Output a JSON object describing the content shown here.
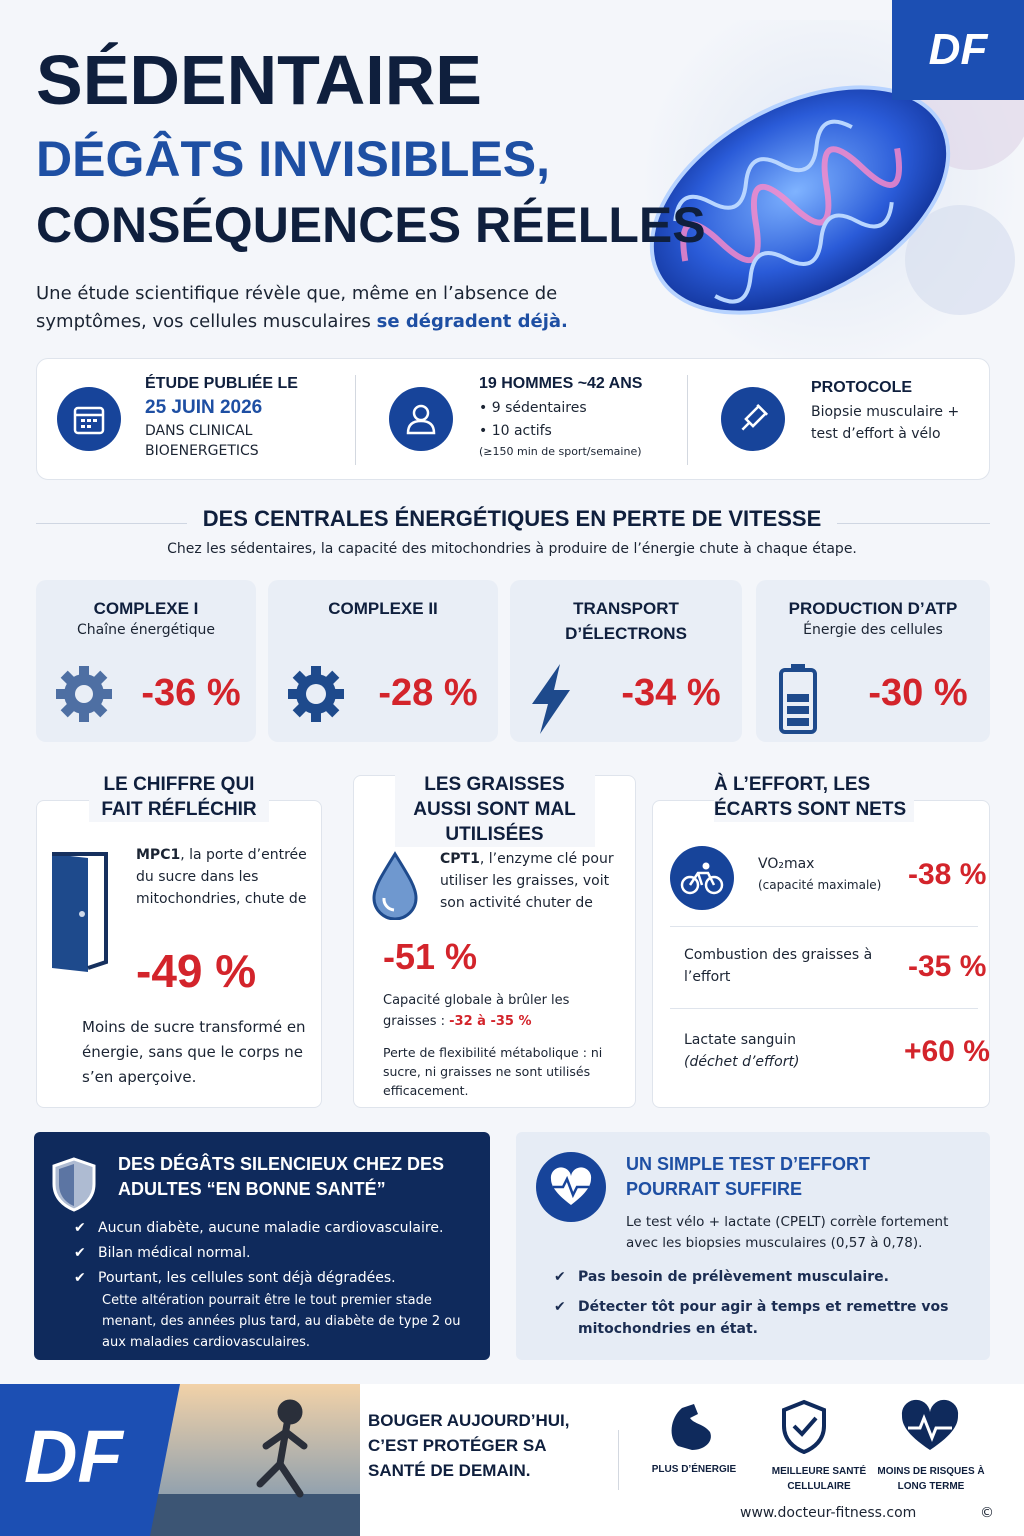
{
  "header": {
    "brand": "DF",
    "title": "SÉDENTAIRE",
    "subtitle_1": "DÉGÂTS INVISIBLES,",
    "subtitle_2": "CONSÉQUENCES RÉELLES",
    "intro": "Une étude scientifique révèle que, même en l’absence de symptômes, vos cellules musculaires ",
    "intro_emphasis": "se dégradent déjà."
  },
  "study_facts": {
    "publication": {
      "title": "ÉTUDE PUBLIÉE LE",
      "date": "25 JUIN 2026",
      "journal": "DANS CLINICAL BIOENERGETICS"
    },
    "participants": {
      "title": "19 HOMMES ~42 ANS",
      "lines": [
        "• 9 sédentaires",
        "• 10 actifs",
        "(≥150 min de sport/semaine)"
      ]
    },
    "protocol": {
      "title": "PROTOCOLE",
      "text": "Biopsie musculaire + test d’effort à vélo"
    }
  },
  "energy_section": {
    "title": "DES CENTRALES ÉNERGÉTIQUES EN PERTE DE VITESSE",
    "subtitle": "Chez les sédentaires, la capacité des mitochondries à produire de l’énergie chute à chaque étape.",
    "items": [
      {
        "title": "COMPLEXE I",
        "caption": "Chaîne énergétique",
        "value": "-36 %"
      },
      {
        "title": "COMPLEXE II",
        "value": "-28 %"
      },
      {
        "title": "TRANSPORT D’ÉLECTRONS",
        "value": "-34 %"
      },
      {
        "title": "PRODUCTION D’ATP",
        "caption": "Énergie des cellules",
        "value": "-30 %"
      }
    ]
  },
  "key_figure": {
    "title": "LE CHIFFRE QUI FAIT RÉFLÉCHIR",
    "term": "MPC1",
    "text": ", la porte d’entrée du sucre dans les mitochondries, chute de",
    "value": "-49 %",
    "conclusion": "Moins de sucre transformé en énergie, sans que le corps ne s’en aperçoive."
  },
  "fats": {
    "title": "LES GRAISSES AUSSI SONT MAL UTILISÉES",
    "term": "CPT1",
    "text": ", l’enzyme clé pour utiliser les graisses, voit son activité chuter de",
    "value": "-51 %",
    "capacity_text": "Capacité globale à brûler les graisses : ",
    "capacity_value": "-32 à -35 %",
    "flexibility": "Perte de flexibilité métabolique : ni sucre, ni graisses ne sont utilisés efficacement."
  },
  "effort": {
    "title": "À L’EFFORT, LES ÉCARTS SONT NETS",
    "rows": [
      {
        "label": "VO₂max",
        "note": "(capacité maximale)",
        "value": "-38 %"
      },
      {
        "label": "Combustion des graisses à l’effort",
        "value": "-35 %"
      },
      {
        "label": "Lactate sanguin",
        "note": "(déchet d’effort)",
        "value": "+60 %"
      }
    ]
  },
  "silent_damage": {
    "title": "DES DÉGÂTS SILENCIEUX CHEZ DES ADULTES “EN BONNE SANTÉ”",
    "items": [
      "Aucun diabète, aucune maladie cardiovasculaire.",
      "Bilan médical normal.",
      "Pourtant, les cellules sont déjà dégradées."
    ],
    "note": "Cette altération pourrait être le tout premier stade menant, des années plus tard, au diabète de type 2 ou aux maladies cardiovasculaires."
  },
  "simple_test": {
    "title": "UN SIMPLE TEST D’EFFORT POURRAIT SUFFIRE",
    "text": "Le test vélo + lactate (CPELT) corrèle fortement avec les biopsies musculaires (0,57 à 0,78).",
    "items": [
      "Pas besoin de prélèvement musculaire.",
      "Détecter tôt pour agir à temps et remettre vos mitochondries en état."
    ]
  },
  "footer": {
    "brand": "DF",
    "slogan": "BOUGER AUJOURD’HUI, C’EST PROTÉGER SA SANTÉ DE DEMAIN.",
    "benefits": [
      "PLUS D’ÉNERGIE",
      "MEILLEURE SANTÉ CELLULAIRE",
      "MOINS DE RISQUES À LONG TERME"
    ],
    "website": "www.docteur-fitness.com",
    "copyright": "©"
  }
}
